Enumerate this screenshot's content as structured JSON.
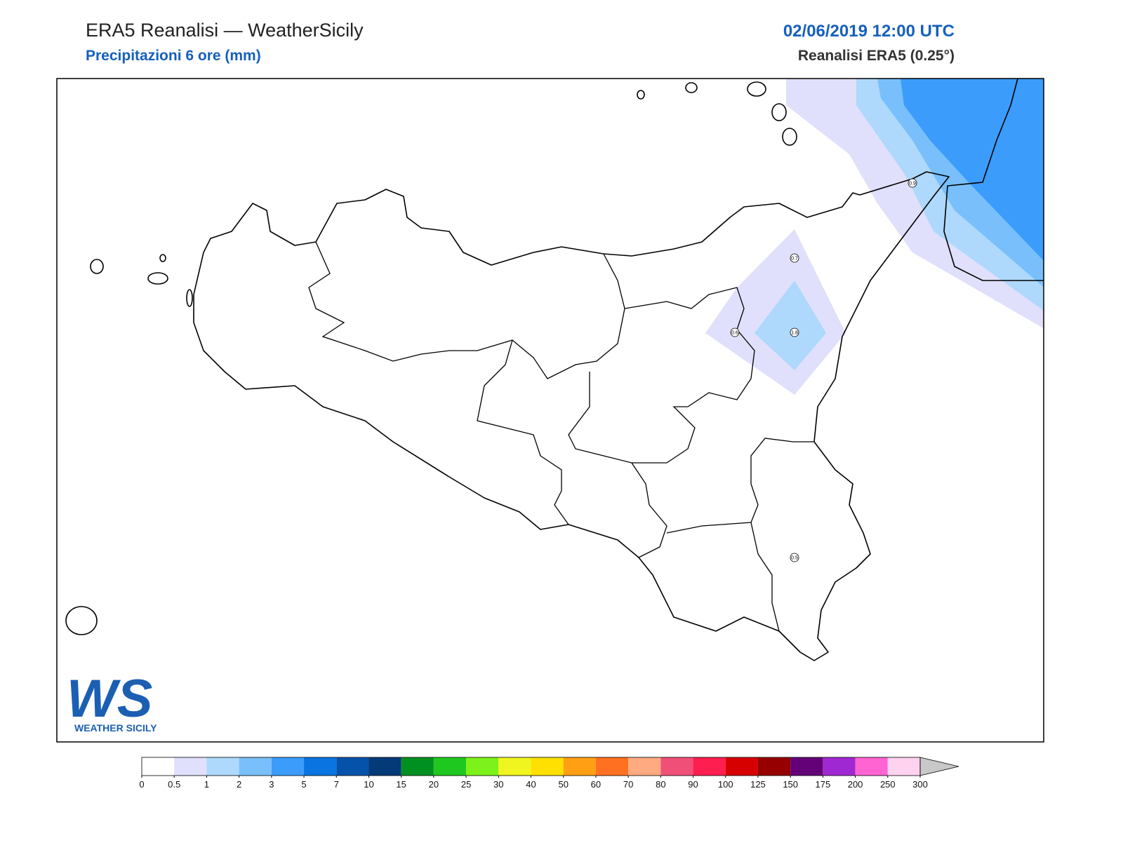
{
  "header": {
    "title": "ERA5 Reanalisi — WeatherSicily",
    "subtitle": "Precipitazioni 6 ore (mm)",
    "date": "02/06/2019 12:00 UTC",
    "source": "Reanalisi ERA5 (0.25°)"
  },
  "map": {
    "point_values": [
      0.9,
      0.7,
      0.6,
      1.8,
      0.5
    ],
    "logo": {
      "mark": "WS",
      "text": "WEATHER SICILY"
    }
  },
  "colorbar": {
    "levels": [
      0,
      0.5,
      1,
      2,
      3,
      5,
      7,
      10,
      15,
      20,
      25,
      30,
      40,
      50,
      60,
      70,
      80,
      90,
      100,
      125,
      150,
      175,
      200,
      250,
      300
    ],
    "colors": [
      "#ffffff",
      "#e0e0fc",
      "#aed8fc",
      "#78bffc",
      "#3b9cfc",
      "#0a74e0",
      "#0552aa",
      "#043a78",
      "#009020",
      "#1fc81f",
      "#7cf21a",
      "#f0f520",
      "#ffe000",
      "#ffa014",
      "#ff7020",
      "#ffaa80",
      "#f05078",
      "#ff1e50",
      "#d70000",
      "#960000",
      "#640078",
      "#a028d2",
      "#ff64d2",
      "#ffd2f0"
    ],
    "extend_color": "#c8c8c8"
  }
}
